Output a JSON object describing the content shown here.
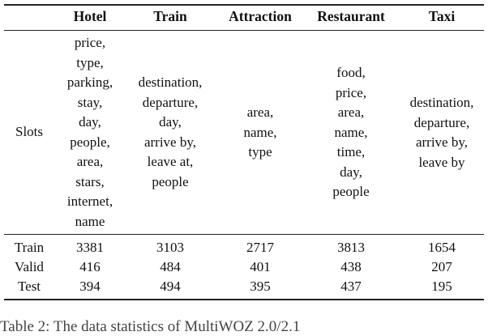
{
  "table": {
    "headers": [
      "",
      "Hotel",
      "Train",
      "Attraction",
      "Restaurant",
      "Taxi"
    ],
    "slots_label": "Slots",
    "slots": {
      "hotel": [
        "price,",
        "type,",
        "parking,",
        "stay,",
        "day,",
        "people,",
        "area,",
        "stars,",
        "internet,",
        "name"
      ],
      "train": [
        "destination,",
        "departure,",
        "day,",
        "arrive by,",
        "leave at,",
        "people"
      ],
      "attraction": [
        "area,",
        "name,",
        "type"
      ],
      "restaurant": [
        "food,",
        "price,",
        "area,",
        "name,",
        "time,",
        "day,",
        "people"
      ],
      "taxi": [
        "destination,",
        "departure,",
        "arrive by,",
        "leave by"
      ]
    },
    "rows": [
      {
        "label": "Train",
        "values": [
          "3381",
          "3103",
          "2717",
          "3813",
          "1654"
        ]
      },
      {
        "label": "Valid",
        "values": [
          "416",
          "484",
          "401",
          "438",
          "207"
        ]
      },
      {
        "label": "Test",
        "values": [
          "394",
          "494",
          "395",
          "437",
          "195"
        ]
      }
    ]
  },
  "caption": "Table 2: The data statistics of MultiWOZ 2.0/2.1"
}
